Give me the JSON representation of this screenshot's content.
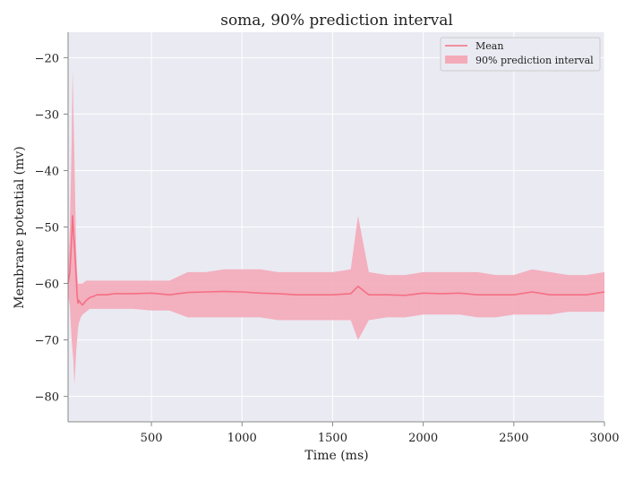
{
  "chart_data": {
    "type": "line",
    "title": "soma, 90% prediction interval",
    "xlabel": "Time (ms)",
    "ylabel": "Membrane potential (mv)",
    "xlim": [
      40,
      3000
    ],
    "ylim": [
      -84.5,
      -15.5
    ],
    "x_ticks": [
      500,
      1000,
      1500,
      2000,
      2500,
      3000
    ],
    "x_tick_labels": [
      "500",
      "1000",
      "1500",
      "2000",
      "2500",
      "3000"
    ],
    "y_ticks": [
      -20,
      -30,
      -40,
      -50,
      -60,
      -70,
      -80
    ],
    "y_tick_labels": [
      "−20",
      "−30",
      "−40",
      "−50",
      "−60",
      "−70",
      "−80"
    ],
    "grid": true,
    "legend_position": "top-right",
    "series": [
      {
        "name": "Mean",
        "kind": "line",
        "color": "#f56f84",
        "x": [
          40,
          50,
          60,
          65,
          70,
          75,
          80,
          85,
          90,
          95,
          100,
          110,
          120,
          140,
          160,
          180,
          200,
          250,
          300,
          400,
          500,
          600,
          700,
          800,
          900,
          1000,
          1100,
          1200,
          1300,
          1400,
          1500,
          1600,
          1640,
          1700,
          1800,
          1900,
          2000,
          2100,
          2200,
          2300,
          2400,
          2500,
          2600,
          2700,
          2800,
          2900,
          3000
        ],
        "y": [
          -60,
          -58,
          -52,
          -48,
          -51,
          -53,
          -56,
          -59,
          -62,
          -63.5,
          -63,
          -63.5,
          -63.8,
          -63,
          -62.5,
          -62.3,
          -62,
          -62,
          -61.8,
          -61.8,
          -61.7,
          -62,
          -61.6,
          -61.5,
          -61.4,
          -61.5,
          -61.7,
          -61.8,
          -62,
          -62,
          -62,
          -61.8,
          -60.5,
          -62,
          -62,
          -62.1,
          -61.7,
          -61.8,
          -61.7,
          -62,
          -62,
          -62,
          -61.5,
          -62,
          -62,
          -62,
          -61.5
        ]
      },
      {
        "name": "90% prediction interval",
        "kind": "band",
        "color": "#f4aab9",
        "x": [
          40,
          50,
          60,
          65,
          70,
          75,
          80,
          85,
          90,
          95,
          100,
          110,
          120,
          140,
          160,
          180,
          200,
          250,
          300,
          400,
          500,
          600,
          700,
          800,
          900,
          1000,
          1100,
          1200,
          1300,
          1400,
          1500,
          1600,
          1640,
          1700,
          1800,
          1900,
          2000,
          2100,
          2200,
          2300,
          2400,
          2500,
          2600,
          2700,
          2800,
          2900,
          3000
        ],
        "lower": [
          -62,
          -64,
          -70,
          -72,
          -74,
          -78,
          -75,
          -72,
          -70,
          -68,
          -67,
          -66,
          -65.5,
          -65,
          -64.5,
          -64.5,
          -64.5,
          -64.5,
          -64.5,
          -64.5,
          -64.8,
          -64.8,
          -66,
          -66,
          -66,
          -66,
          -66,
          -66.5,
          -66.5,
          -66.5,
          -66.5,
          -66.5,
          -70,
          -66.5,
          -66,
          -66,
          -65.5,
          -65.5,
          -65.5,
          -66,
          -66,
          -65.5,
          -65.5,
          -65.5,
          -65,
          -65,
          -65
        ],
        "upper": [
          -58,
          -50,
          -35,
          -22,
          -30,
          -38,
          -46,
          -54,
          -58,
          -60,
          -60,
          -60,
          -60,
          -59.5,
          -59.5,
          -59.5,
          -59.5,
          -59.5,
          -59.5,
          -59.5,
          -59.5,
          -59.5,
          -58,
          -58,
          -57.5,
          -57.5,
          -57.5,
          -58,
          -58,
          -58,
          -58,
          -57.5,
          -48,
          -58,
          -58.5,
          -58.5,
          -58,
          -58,
          -58,
          -58,
          -58.5,
          -58.5,
          -57.5,
          -58,
          -58.5,
          -58.5,
          -58
        ]
      }
    ]
  }
}
